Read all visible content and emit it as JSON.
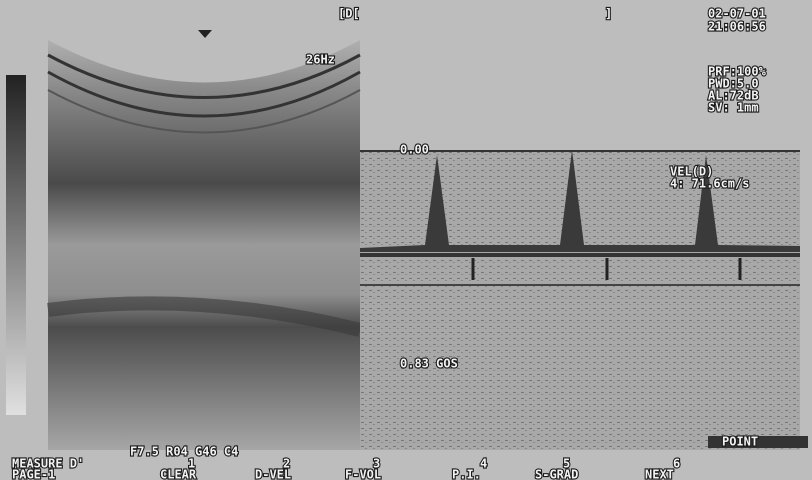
{
  "header": {
    "marker_left": "[D[",
    "marker_right": "]",
    "date": "02-07-01",
    "time": "21:06:56",
    "frame_rate": "26Hz"
  },
  "params": [
    "PRF:100%",
    "PWD:5.0",
    "AL:72dB",
    "SV: 1mm"
  ],
  "doppler": {
    "baseline": "0.00",
    "vel_label": "VEL(D)",
    "vel_value": "4: 71.6cm/s",
    "scale": "0.83 GOS"
  },
  "probe": "F7.5 R04 G46 C4",
  "menu": {
    "mode": "MEASURE D'",
    "page": "PAGE-1",
    "keys": [
      {
        "number": "1",
        "label": "CLEAR"
      },
      {
        "number": "2",
        "label": "D-VEL"
      },
      {
        "number": "3",
        "label": "F-VOL"
      },
      {
        "number": "4",
        "label": "P.I."
      },
      {
        "number": "5",
        "label": "S-GRAD"
      },
      {
        "number": "6",
        "label": "NEXT"
      }
    ]
  },
  "point": "POINT"
}
